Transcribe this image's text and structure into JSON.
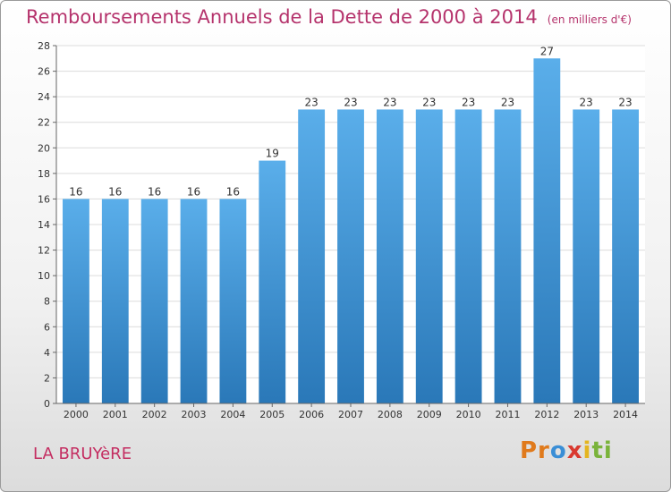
{
  "header": {
    "title": "Remboursements Annuels de la Dette de 2000 à 2014",
    "unit": "(en milliers d'€)"
  },
  "footer": {
    "commune": "LA BRUYèRE",
    "logo": [
      "Pr",
      "o",
      "x",
      "i",
      "ti"
    ]
  },
  "chart_data": {
    "type": "bar",
    "title": "Remboursements Annuels de la Dette de 2000 à 2014",
    "unit": "(en milliers d'€)",
    "categories": [
      "2000",
      "2001",
      "2002",
      "2003",
      "2004",
      "2005",
      "2006",
      "2007",
      "2008",
      "2009",
      "2010",
      "2011",
      "2012",
      "2013",
      "2014"
    ],
    "values": [
      16,
      16,
      16,
      16,
      16,
      19,
      23,
      23,
      23,
      23,
      23,
      23,
      27,
      23,
      23
    ],
    "ylim": [
      0,
      28
    ],
    "yticks": [
      0,
      2,
      4,
      6,
      8,
      10,
      12,
      14,
      16,
      18,
      20,
      22,
      24,
      26,
      28
    ],
    "grid": true,
    "colors": {
      "bar_top": "#5aaeea",
      "bar_bottom": "#2a78b8",
      "grid": "#dcdcdc",
      "axis": "#666666"
    }
  }
}
